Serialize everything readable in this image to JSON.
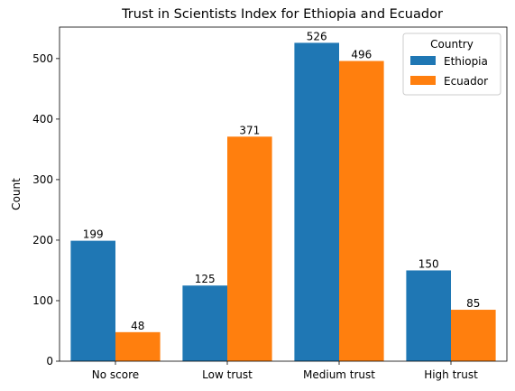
{
  "chart_data": {
    "type": "bar",
    "title": "Trust in Scientists Index for Ethiopia and Ecuador",
    "xlabel": "",
    "ylabel": "Count",
    "categories": [
      "No score",
      "Low trust",
      "Medium trust",
      "High trust"
    ],
    "series": [
      {
        "name": "Ethiopia",
        "values": [
          199,
          125,
          526,
          150
        ],
        "color": "#1f77b4"
      },
      {
        "name": "Ecuador",
        "values": [
          48,
          371,
          496,
          85
        ],
        "color": "#ff7f0e"
      }
    ],
    "ylim": [
      0,
      552
    ],
    "yticks": [
      0,
      100,
      200,
      300,
      400,
      500
    ],
    "grid": false,
    "legend": {
      "title": "Country",
      "placement": "top-right"
    }
  }
}
